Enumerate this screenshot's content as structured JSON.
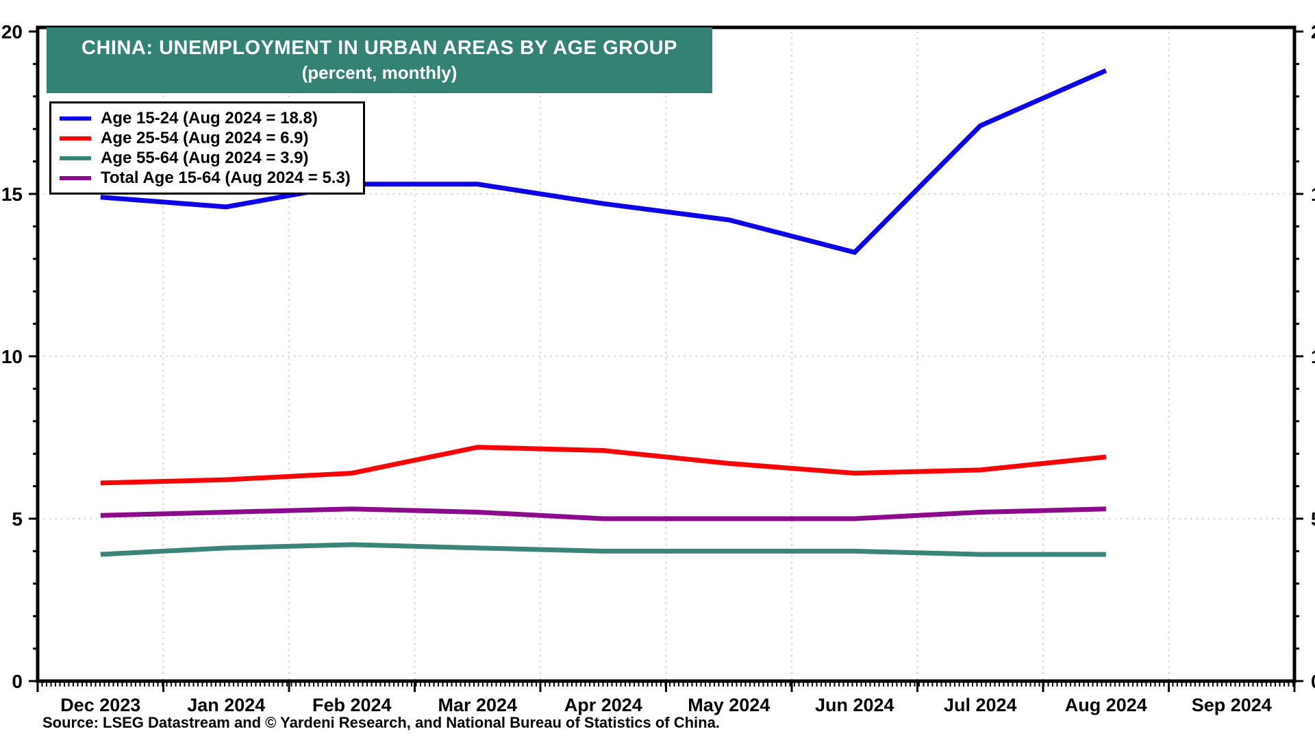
{
  "title": {
    "line1": "CHINA: UNEMPLOYMENT IN URBAN AREAS BY AGE GROUP",
    "line2": "(percent, monthly)"
  },
  "source": "Source: LSEG Datastream and © Yardeni Research, and National Bureau of Statistics of China.",
  "colors": {
    "title_bg": "#338273",
    "title_text": "#ffffff",
    "blue": "#0b00e6",
    "red": "#fb0006",
    "teal": "#3a8578",
    "purple": "#8c0a8c",
    "gridline": "#d9d9d9",
    "axis": "#000000"
  },
  "chart_data": {
    "type": "line",
    "categories": [
      "Dec 2023",
      "Jan 2024",
      "Feb 2024",
      "Mar 2024",
      "Apr 2024",
      "May 2024",
      "Jun 2024",
      "Jul 2024",
      "Aug 2024",
      "Sep 2024"
    ],
    "series": [
      {
        "name": "Age 15-24 (Aug 2024 = 18.8)",
        "color_key": "blue",
        "values": [
          14.9,
          14.6,
          15.3,
          15.3,
          14.7,
          14.2,
          13.2,
          17.1,
          18.8
        ]
      },
      {
        "name": "Age 25-54 (Aug 2024 = 6.9)",
        "color_key": "red",
        "values": [
          6.1,
          6.2,
          6.4,
          7.2,
          7.1,
          6.7,
          6.4,
          6.5,
          6.9
        ]
      },
      {
        "name": "Age 55-64 (Aug 2024 = 3.9)",
        "color_key": "teal",
        "values": [
          3.9,
          4.1,
          4.2,
          4.1,
          4.0,
          4.0,
          4.0,
          3.9,
          3.9
        ]
      },
      {
        "name": "Total Age 15-64 (Aug 2024 = 5.3)",
        "color_key": "purple",
        "values": [
          5.1,
          5.2,
          5.3,
          5.2,
          5.0,
          5.0,
          5.0,
          5.2,
          5.3
        ]
      }
    ],
    "ylim": [
      0,
      20
    ],
    "y_major_ticks": [
      0,
      5,
      10,
      15,
      20
    ],
    "y_tick_labels": [
      "0",
      "5",
      "10",
      "15",
      "20"
    ],
    "y_minor_step": 1,
    "grid": {
      "horizontal_at": [
        5,
        10,
        15
      ],
      "vertical_at": "month-boundaries",
      "style": "dotted"
    },
    "legend_position": "top-left",
    "axis_labels_both_sides": true
  }
}
